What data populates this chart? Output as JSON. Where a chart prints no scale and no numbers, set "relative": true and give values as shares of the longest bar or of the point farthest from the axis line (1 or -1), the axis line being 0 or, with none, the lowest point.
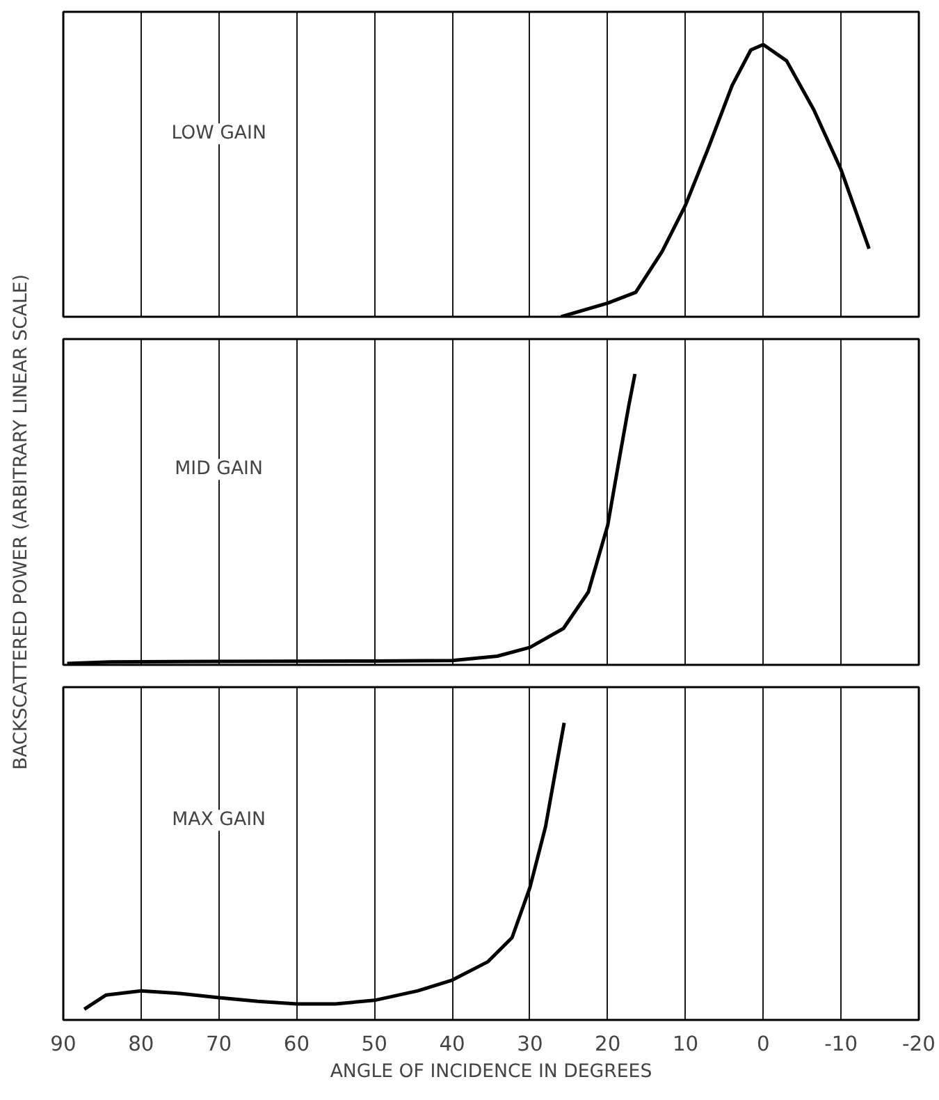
{
  "chart_data": [
    {
      "type": "line",
      "relative": true,
      "xlim": [
        90,
        -20
      ],
      "xticks": [
        90,
        80,
        70,
        60,
        50,
        40,
        30,
        20,
        10,
        0,
        -10,
        -20
      ],
      "grid": "x",
      "tick_labels": false,
      "annotations": [
        "LOW GAIN"
      ],
      "series": [
        {
          "color": "#000000",
          "x": [
            26,
            20,
            16.4,
            13,
            10,
            7.2,
            4,
            1.6,
            0,
            -3,
            -6.5,
            -10,
            -13.6
          ],
          "values": [
            0,
            0.05,
            0.09,
            0.24,
            0.41,
            0.61,
            0.85,
            0.98,
            1,
            0.94,
            0.76,
            0.54,
            0.25
          ]
        }
      ]
    },
    {
      "type": "line",
      "relative": true,
      "xlim": [
        90,
        -20
      ],
      "xticks": [
        90,
        80,
        70,
        60,
        50,
        40,
        30,
        20,
        10,
        0,
        -10,
        -20
      ],
      "grid": "x",
      "tick_labels": false,
      "ylabel": "BACKSCATTERED POWER (ARBITRARY LINEAR SCALE)",
      "annotations": [
        "MID GAIN"
      ],
      "series": [
        {
          "color": "#000000",
          "x": [
            89.5,
            84,
            70,
            50,
            40,
            34.2,
            30,
            25.7,
            22.5,
            20,
            18.5,
            17.3,
            16.5
          ],
          "values": [
            0.005,
            0.01,
            0.012,
            0.013,
            0.015,
            0.03,
            0.06,
            0.125,
            0.25,
            0.48,
            0.71,
            0.89,
            1
          ]
        }
      ]
    },
    {
      "type": "line",
      "relative": true,
      "xlim": [
        90,
        -20
      ],
      "xticks": [
        90,
        80,
        70,
        60,
        50,
        40,
        30,
        20,
        10,
        0,
        -10,
        -20
      ],
      "grid": "x",
      "tick_labels": "x",
      "xlabel": "ANGLE OF INCIDENCE IN DEGREES",
      "annotations": [
        "MAX GAIN"
      ],
      "series": [
        {
          "color": "#000000",
          "x": [
            87.3,
            84.5,
            80,
            75,
            70,
            65,
            60,
            55,
            50,
            44.4,
            40,
            35.4,
            32.3,
            30,
            28,
            26.4,
            25.6
          ],
          "values": [
            0.036,
            0.084,
            0.098,
            0.089,
            0.075,
            0.0625,
            0.054,
            0.054,
            0.066,
            0.098,
            0.134,
            0.196,
            0.277,
            0.446,
            0.65,
            0.884,
            1
          ]
        }
      ]
    }
  ]
}
